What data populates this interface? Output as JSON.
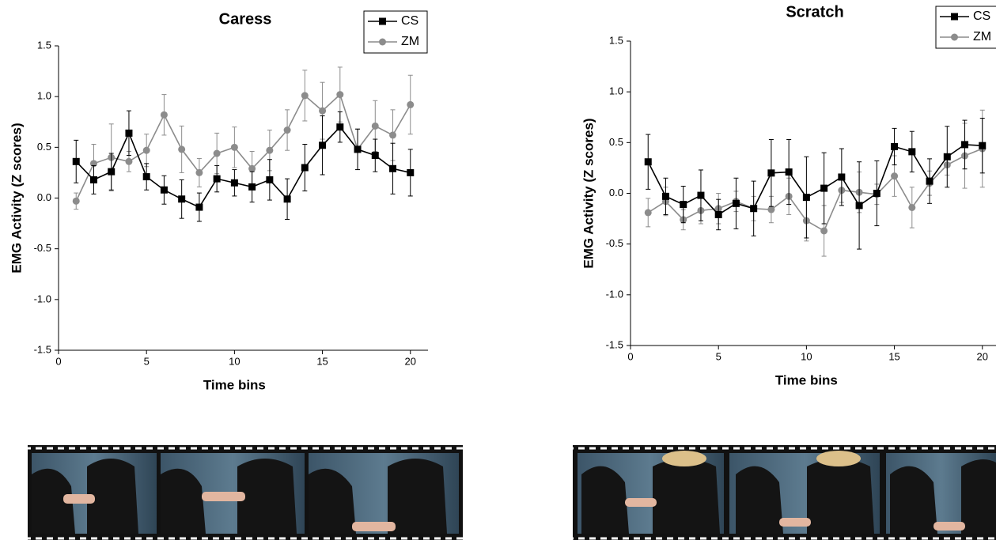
{
  "chart_data": [
    {
      "type": "line",
      "title": "Caress",
      "xlabel": "Time bins",
      "ylabel": "EMG Activity (Z scores)",
      "x": [
        1,
        2,
        3,
        4,
        5,
        6,
        7,
        8,
        9,
        10,
        11,
        12,
        13,
        14,
        15,
        16,
        17,
        18,
        19,
        20
      ],
      "xlim": [
        0,
        21
      ],
      "xticks": [
        0,
        5,
        10,
        15,
        20
      ],
      "ylim": [
        -1.5,
        1.5
      ],
      "yticks": [
        -1.5,
        {
          "value": -1.0,
          "label": "-1.0"
        },
        -0.5,
        {
          "value": 0.0,
          "label": "0.0"
        },
        0.5,
        {
          "value": 1.0,
          "label": "1.0"
        },
        1.5
      ],
      "series": [
        {
          "name": "CS",
          "color": "#000000",
          "marker": "square",
          "values": [
            0.36,
            0.18,
            0.26,
            0.64,
            0.21,
            0.08,
            -0.01,
            -0.09,
            0.19,
            0.15,
            0.11,
            0.18,
            -0.01,
            0.3,
            0.52,
            0.7,
            0.48,
            0.42,
            0.29,
            0.25
          ],
          "errors": [
            0.21,
            0.14,
            0.18,
            0.22,
            0.13,
            0.14,
            0.19,
            0.14,
            0.13,
            0.13,
            0.15,
            0.2,
            0.2,
            0.23,
            0.29,
            0.15,
            0.2,
            0.16,
            0.25,
            0.23
          ]
        },
        {
          "name": "ZM",
          "color": "#8c8c8c",
          "marker": "circle",
          "values": [
            -0.03,
            0.34,
            0.4,
            0.36,
            0.47,
            0.82,
            0.48,
            0.25,
            0.44,
            0.5,
            0.29,
            0.47,
            0.67,
            1.01,
            0.86,
            1.02,
            0.48,
            0.71,
            0.62,
            0.92
          ],
          "errors": [
            0.08,
            0.19,
            0.33,
            0.1,
            0.16,
            0.2,
            0.23,
            0.14,
            0.2,
            0.2,
            0.17,
            0.2,
            0.2,
            0.25,
            0.28,
            0.27,
            0.2,
            0.25,
            0.25,
            0.29
          ]
        }
      ]
    },
    {
      "type": "line",
      "title": "Scratch",
      "xlabel": "Time bins",
      "ylabel": "EMG Activity (Z scores)",
      "x": [
        1,
        2,
        3,
        4,
        5,
        6,
        7,
        8,
        9,
        10,
        11,
        12,
        13,
        14,
        15,
        16,
        17,
        18,
        19,
        20
      ],
      "xlim": [
        0,
        21
      ],
      "xticks": [
        0,
        5,
        10,
        15,
        20
      ],
      "ylim": [
        -1.5,
        1.5
      ],
      "yticks": [
        -1.5,
        {
          "value": -1.0,
          "label": "-1.0"
        },
        -0.5,
        {
          "value": 0.0,
          "label": "0.0"
        },
        0.5,
        {
          "value": 1.0,
          "label": "1.0"
        },
        1.5
      ],
      "series": [
        {
          "name": "CS",
          "color": "#000000",
          "marker": "square",
          "values": [
            0.31,
            -0.03,
            -0.11,
            -0.02,
            -0.21,
            -0.1,
            -0.15,
            0.2,
            0.21,
            -0.04,
            0.05,
            0.16,
            -0.12,
            0.0,
            0.46,
            0.41,
            0.12,
            0.36,
            0.48,
            0.47
          ],
          "errors": [
            0.27,
            0.18,
            0.18,
            0.25,
            0.15,
            0.25,
            0.27,
            0.33,
            0.32,
            0.4,
            0.35,
            0.28,
            0.43,
            0.32,
            0.18,
            0.2,
            0.22,
            0.3,
            0.24,
            0.27
          ]
        },
        {
          "name": "ZM",
          "color": "#8c8c8c",
          "marker": "circle",
          "values": [
            -0.19,
            -0.08,
            -0.26,
            -0.17,
            -0.15,
            -0.08,
            -0.15,
            -0.16,
            -0.03,
            -0.27,
            -0.37,
            0.03,
            0.01,
            -0.01,
            0.17,
            -0.14,
            0.1,
            0.28,
            0.37,
            0.44
          ],
          "errors": [
            0.14,
            0.14,
            0.1,
            0.13,
            0.15,
            0.1,
            0.12,
            0.13,
            0.18,
            0.2,
            0.25,
            0.12,
            0.2,
            0.1,
            0.2,
            0.2,
            0.12,
            0.1,
            0.32,
            0.38
          ]
        }
      ]
    }
  ]
}
